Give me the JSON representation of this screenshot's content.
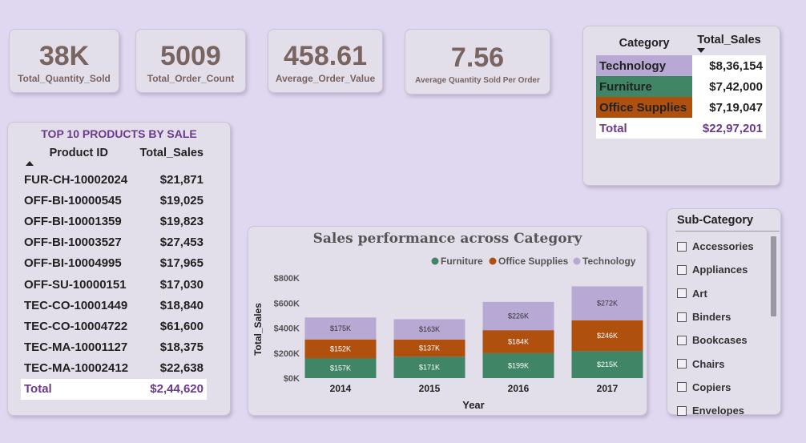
{
  "kpis": [
    {
      "value": "38K",
      "label": "Total_Quantity_Sold"
    },
    {
      "value": "5009",
      "label": "Total_Order_Count"
    },
    {
      "value": "458.61",
      "label": "Average_Order_Value"
    },
    {
      "value": "7.56",
      "label": "Average Quantity Sold Per Order"
    }
  ],
  "category_table": {
    "headers": [
      "Category",
      "Total_Sales"
    ],
    "rows": [
      {
        "name": "Technology",
        "value": "$8,36,154",
        "color": "#b8a9d4"
      },
      {
        "name": "Furniture",
        "value": "$7,42,000",
        "color": "#3f8566"
      },
      {
        "name": "Office Supplies",
        "value": "$7,19,047",
        "color": "#b0500f"
      }
    ],
    "total_label": "Total",
    "total_value": "$22,97,201"
  },
  "top_products": {
    "title": "TOP 10 PRODUCTS BY SALE",
    "headers": [
      "Product ID",
      "Total_Sales"
    ],
    "rows": [
      {
        "id": "FUR-CH-10002024",
        "sales": "$21,871"
      },
      {
        "id": "OFF-BI-10000545",
        "sales": "$19,025"
      },
      {
        "id": "OFF-BI-10001359",
        "sales": "$19,823"
      },
      {
        "id": "OFF-BI-10003527",
        "sales": "$27,453"
      },
      {
        "id": "OFF-BI-10004995",
        "sales": "$17,965"
      },
      {
        "id": "OFF-SU-10000151",
        "sales": "$17,030"
      },
      {
        "id": "TEC-CO-10001449",
        "sales": "$18,840"
      },
      {
        "id": "TEC-CO-10004722",
        "sales": "$61,600"
      },
      {
        "id": "TEC-MA-10001127",
        "sales": "$18,375"
      },
      {
        "id": "TEC-MA-10002412",
        "sales": "$22,638"
      }
    ],
    "total_label": "Total",
    "total_value": "$2,44,620"
  },
  "chart_data": {
    "type": "bar",
    "stacked": true,
    "title": "Sales performance across Category",
    "xlabel": "Year",
    "ylabel": "Total_Sales",
    "categories": [
      "2014",
      "2015",
      "2016",
      "2017"
    ],
    "yticks": [
      "$0K",
      "$200K",
      "$400K",
      "$600K",
      "$800K"
    ],
    "ylim": [
      0,
      800
    ],
    "legend_position": "top-right",
    "series": [
      {
        "name": "Furniture",
        "color": "#3f8566",
        "values": [
          157,
          171,
          199,
          215
        ],
        "labels": [
          "$157K",
          "$171K",
          "$199K",
          "$215K"
        ]
      },
      {
        "name": "Office Supplies",
        "color": "#b0500f",
        "values": [
          152,
          137,
          184,
          246
        ],
        "labels": [
          "$152K",
          "$137K",
          "$184K",
          "$246K"
        ]
      },
      {
        "name": "Technology",
        "color": "#b8a9d4",
        "values": [
          175,
          163,
          226,
          272
        ],
        "labels": [
          "$175K",
          "$163K",
          "$226K",
          "$272K"
        ]
      }
    ]
  },
  "slicer": {
    "title": "Sub-Category",
    "items": [
      "Accessories",
      "Appliances",
      "Art",
      "Binders",
      "Bookcases",
      "Chairs",
      "Copiers",
      "Envelopes"
    ]
  }
}
